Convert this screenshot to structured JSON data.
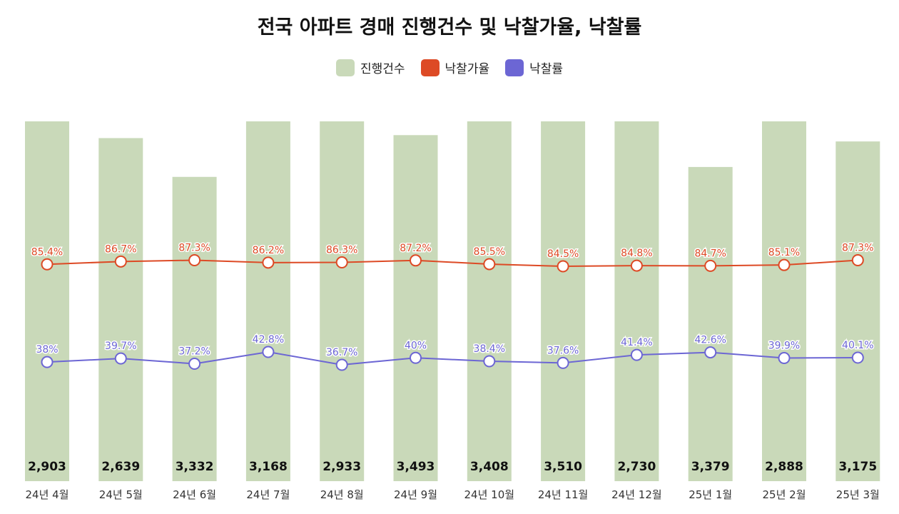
{
  "title": "전국 아파트 경매 진행건수 및 낙찰가율, 낙찰률",
  "legend": [
    {
      "label": "진행건수",
      "color": "#c9d9b9"
    },
    {
      "label": "낙찰가율",
      "color": "#dd4a25"
    },
    {
      "label": "낙찰률",
      "color": "#6c66d4"
    }
  ],
  "chart_data": {
    "type": "bar",
    "title": "전국 아파트 경매 진행건수 및 낙찰가율, 낙찰률",
    "categories": [
      "24년 4월",
      "24년 5월",
      "24년 6월",
      "24년 7월",
      "24년 8월",
      "24년 9월",
      "24년 10월",
      "24년 11월",
      "24년 12월",
      "25년 1월",
      "25년 2월",
      "25년 3월"
    ],
    "series": [
      {
        "name": "진행건수",
        "kind": "bar",
        "color": "#c9d9b9",
        "values": [
          2903,
          2639,
          3332,
          3168,
          2933,
          3493,
          3408,
          3510,
          2730,
          3379,
          2888,
          3175
        ],
        "labels": [
          "2,903",
          "2,639",
          "3,332",
          "3,168",
          "2,933",
          "3,493",
          "3,408",
          "3,510",
          "2,730",
          "3,379",
          "2,888",
          "3,175"
        ]
      },
      {
        "name": "낙찰가율",
        "kind": "line",
        "color": "#dd4a25",
        "values": [
          85.4,
          86.7,
          87.3,
          86.2,
          86.3,
          87.2,
          85.5,
          84.5,
          84.8,
          84.7,
          85.1,
          87.3
        ],
        "labels": [
          "85.4%",
          "86.7%",
          "87.3%",
          "86.2%",
          "86.3%",
          "87.2%",
          "85.5%",
          "84.5%",
          "84.8%",
          "84.7%",
          "85.1%",
          "87.3%"
        ]
      },
      {
        "name": "낙찰률",
        "kind": "line",
        "color": "#6c66d4",
        "values": [
          38,
          39.7,
          37.2,
          42.8,
          36.7,
          40,
          38.4,
          37.6,
          41.4,
          42.6,
          39.9,
          40.1
        ],
        "labels": [
          "38%",
          "39.7%",
          "37.2%",
          "42.8%",
          "36.7%",
          "40%",
          "38.4%",
          "37.6%",
          "41.4%",
          "42.6%",
          "39.9%",
          "40.1%"
        ]
      }
    ],
    "bar_display_heights": [
      2903,
      2768,
      2455,
      2903,
      2903,
      2792,
      2903,
      2903,
      2903,
      2535,
      2903,
      2741
    ],
    "grid": false,
    "legend_position": "top"
  }
}
